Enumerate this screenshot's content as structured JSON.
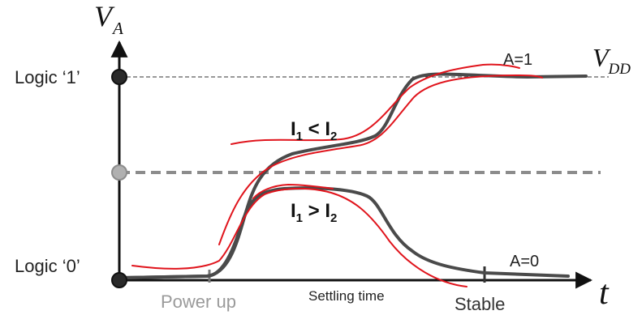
{
  "axes": {
    "y_symbol": "V",
    "y_subscript": "A",
    "x_symbol": "t"
  },
  "levels": {
    "logic1_label": "Logic ‘1’",
    "logic0_label": "Logic ‘0’",
    "vdd_symbol": "V",
    "vdd_subscript": "DD"
  },
  "curves": {
    "upper_label": "A=1",
    "lower_label": "A=0",
    "upper_relation": {
      "left": "I",
      "left_sub": "1",
      "op": " < ",
      "right": "I",
      "right_sub": "2"
    },
    "lower_relation": {
      "left": "I",
      "left_sub": "1",
      "op": " > ",
      "right": "I",
      "right_sub": "2"
    }
  },
  "timeline": {
    "power_up": "Power up",
    "settling": "Settling time",
    "stable": "Stable"
  },
  "colors": {
    "axis": "#111111",
    "curve": "#4a4a4a",
    "sketch": "#e0141c",
    "midline": "#8c8c8c",
    "power_up_text": "#9a9a9a",
    "label_text": "#222222"
  }
}
